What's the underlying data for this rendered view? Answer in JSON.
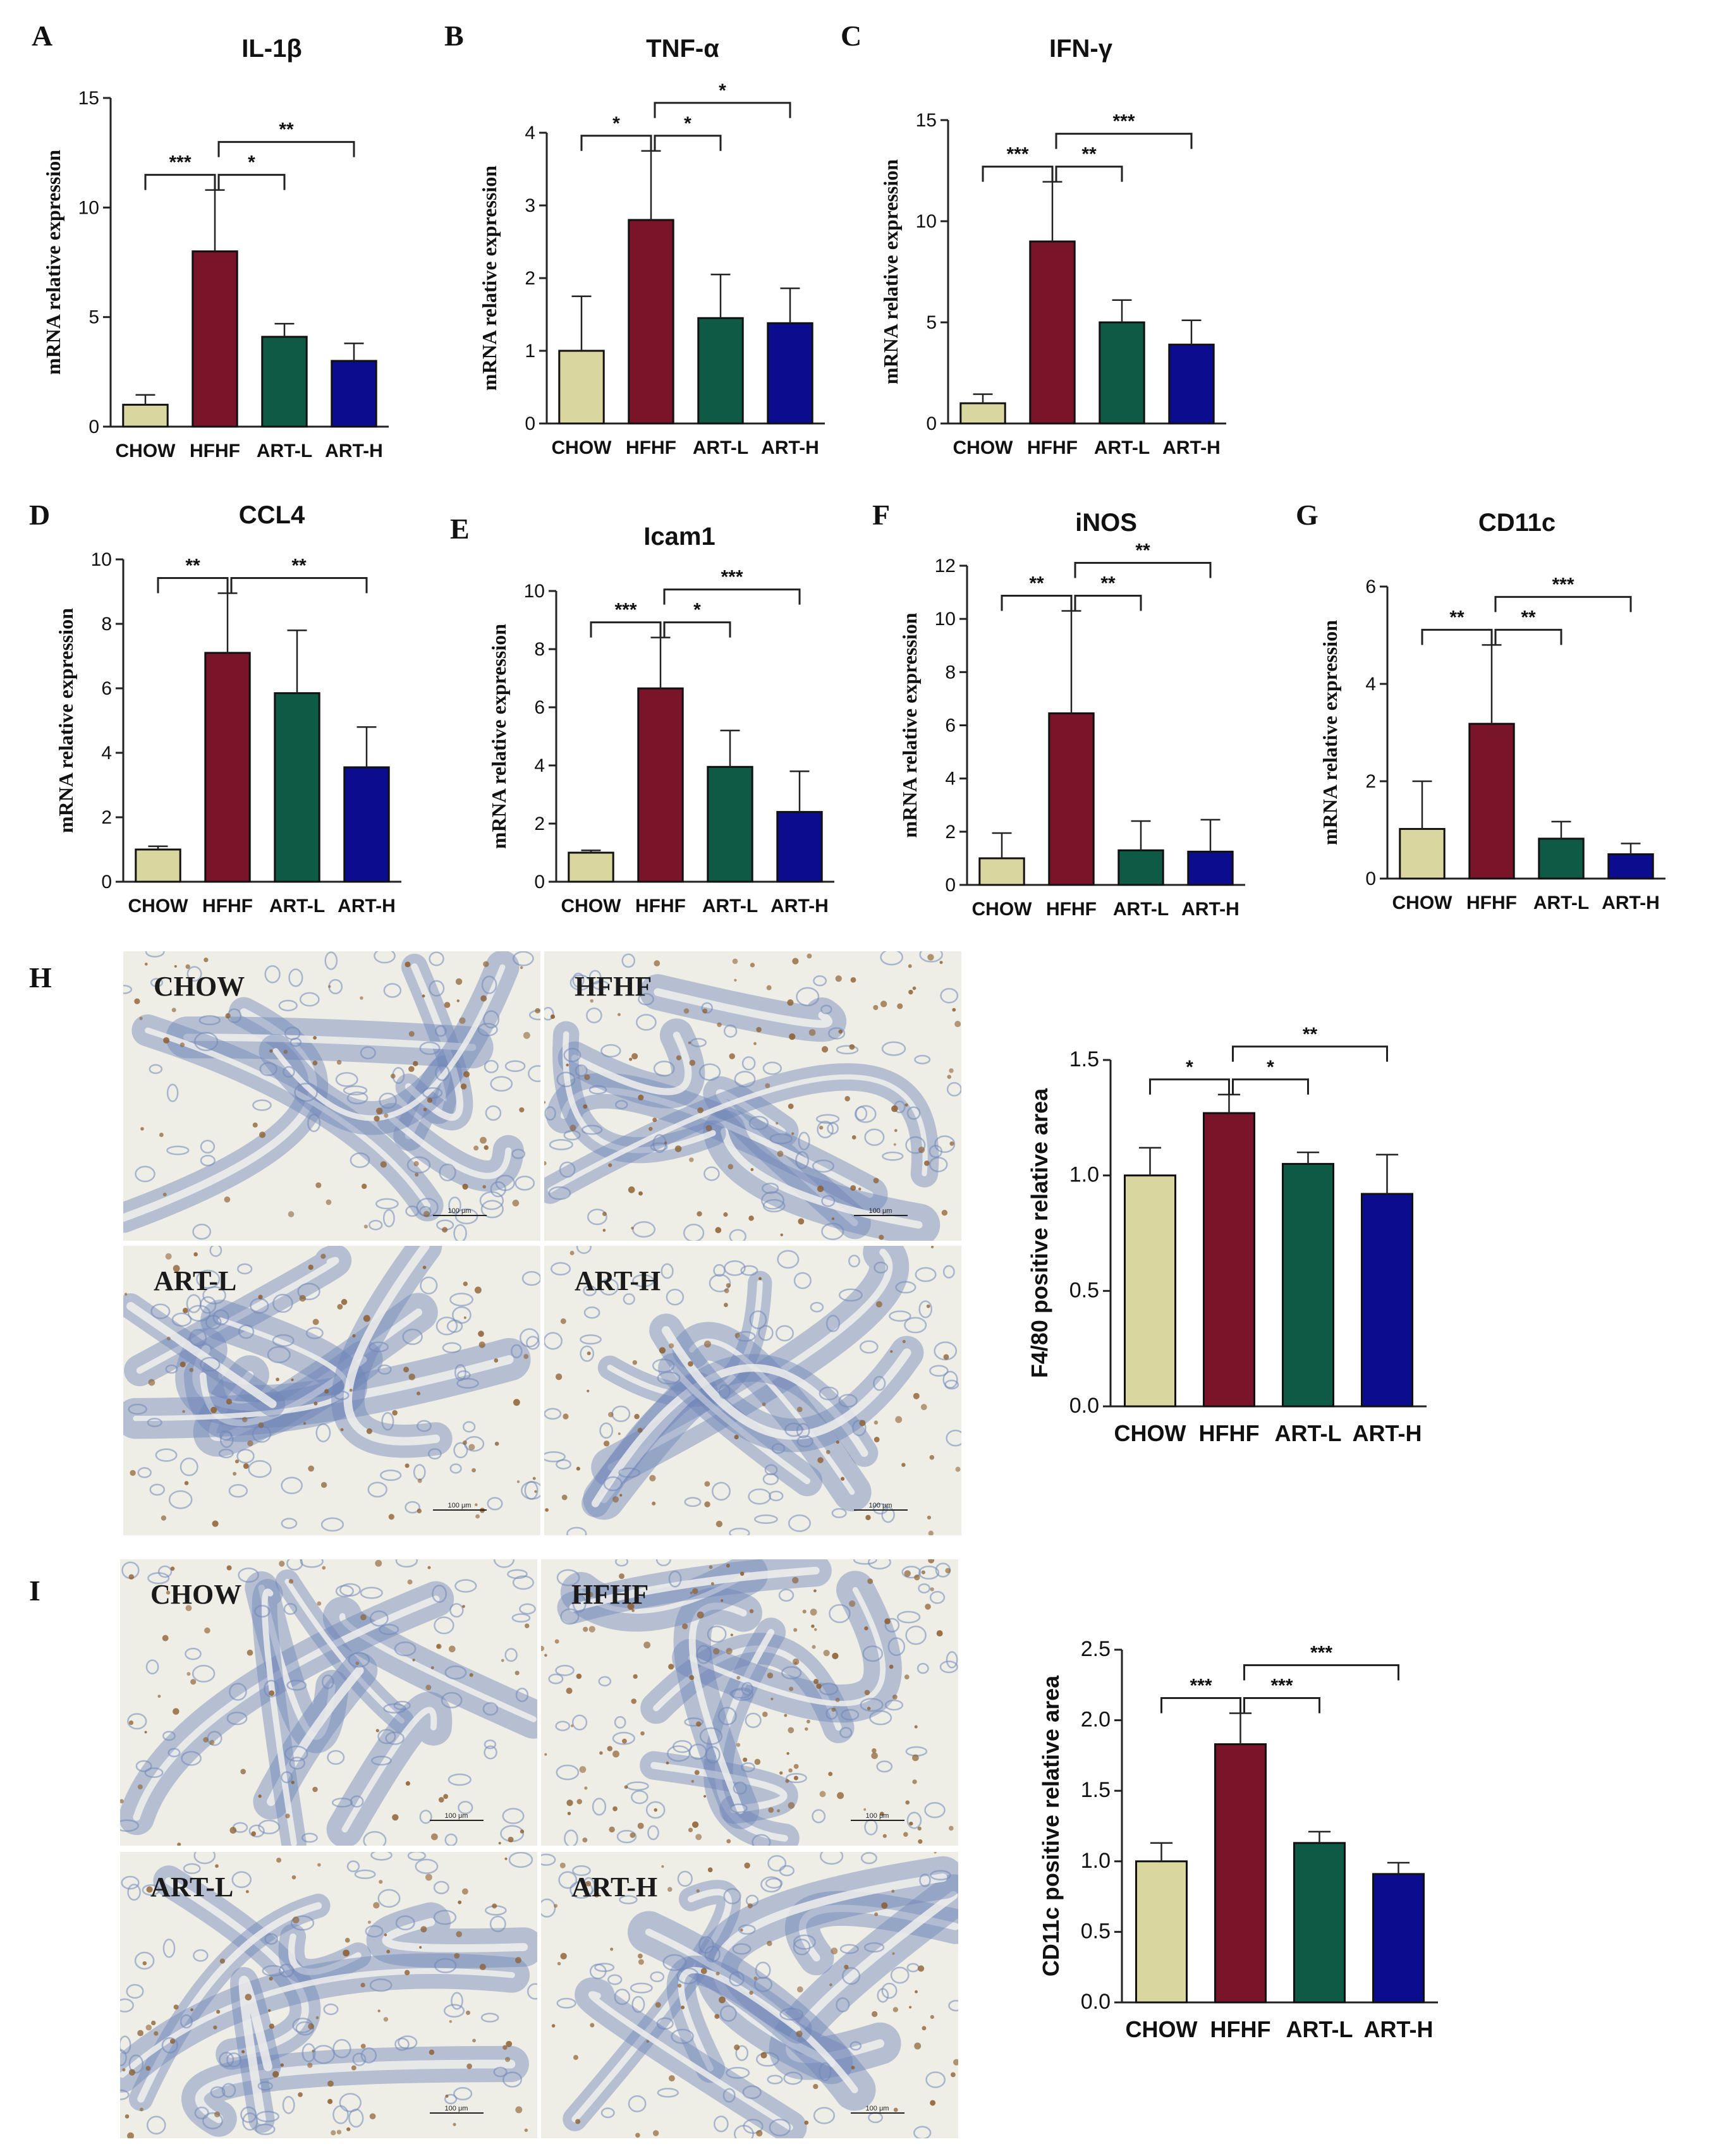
{
  "colors": {
    "CHOW": "#dad6a0",
    "HFHF": "#7a1428",
    "ART-L": "#0f5a44",
    "ART-H": "#0c0c8f",
    "tissue_base": "#eeeee6",
    "stain_blue": "#6f86b8",
    "stain_brown": "#8a5a2a"
  },
  "panels": {
    "A": "A",
    "B": "B",
    "C": "C",
    "D": "D",
    "E": "E",
    "F": "F",
    "G": "G",
    "H": "H",
    "I": "I"
  },
  "chart_data": [
    {
      "id": "A",
      "type": "bar",
      "title": "IL-1β",
      "ylabel": "mRNA relative expression",
      "xlabel": "",
      "categories": [
        "CHOW",
        "HFHF",
        "ART-L",
        "ART-H"
      ],
      "values": [
        1.0,
        8.0,
        4.1,
        3.0
      ],
      "errors": [
        0.45,
        2.8,
        0.6,
        0.8
      ],
      "ylim": [
        0,
        15
      ],
      "yticks": [
        "0",
        "5",
        "10",
        "15"
      ],
      "significance": [
        {
          "from": "CHOW",
          "to": "HFHF",
          "label": "***"
        },
        {
          "from": "HFHF",
          "to": "ART-L",
          "label": "*"
        },
        {
          "from": "HFHF",
          "to": "ART-H",
          "label": "**"
        }
      ]
    },
    {
      "id": "B",
      "type": "bar",
      "title": "TNF-α",
      "ylabel": "mRNA relative expression",
      "xlabel": "",
      "categories": [
        "CHOW",
        "HFHF",
        "ART-L",
        "ART-H"
      ],
      "values": [
        1.0,
        2.8,
        1.45,
        1.38
      ],
      "errors": [
        0.75,
        0.95,
        0.6,
        0.48
      ],
      "ylim": [
        0,
        4
      ],
      "yticks": [
        "0",
        "1",
        "2",
        "3",
        "4"
      ],
      "significance": [
        {
          "from": "CHOW",
          "to": "HFHF",
          "label": "*"
        },
        {
          "from": "HFHF",
          "to": "ART-L",
          "label": "*"
        },
        {
          "from": "HFHF",
          "to": "ART-H",
          "label": "*"
        }
      ]
    },
    {
      "id": "C",
      "type": "bar",
      "title": "IFN-γ",
      "ylabel": "mRNA relative expression",
      "xlabel": "",
      "categories": [
        "CHOW",
        "HFHF",
        "ART-L",
        "ART-H"
      ],
      "values": [
        1.0,
        9.0,
        5.0,
        3.9
      ],
      "errors": [
        0.45,
        2.95,
        1.1,
        1.2
      ],
      "ylim": [
        0,
        15
      ],
      "yticks": [
        "0",
        "5",
        "10",
        "15"
      ],
      "significance": [
        {
          "from": "CHOW",
          "to": "HFHF",
          "label": "***"
        },
        {
          "from": "HFHF",
          "to": "ART-L",
          "label": "**"
        },
        {
          "from": "HFHF",
          "to": "ART-H",
          "label": "***"
        }
      ]
    },
    {
      "id": "D",
      "type": "bar",
      "title": "CCL4",
      "ylabel": "mRNA relative expression",
      "xlabel": "",
      "categories": [
        "CHOW",
        "HFHF",
        "ART-L",
        "ART-H"
      ],
      "values": [
        1.0,
        7.1,
        5.85,
        3.55
      ],
      "errors": [
        0.1,
        1.85,
        1.95,
        1.25
      ],
      "ylim": [
        0,
        10
      ],
      "yticks": [
        "0",
        "2",
        "4",
        "6",
        "8",
        "10"
      ],
      "significance": [
        {
          "from": "CHOW",
          "to": "HFHF",
          "label": "**"
        },
        {
          "from": "HFHF",
          "to": "ART-H",
          "label": "**"
        }
      ]
    },
    {
      "id": "E",
      "type": "bar",
      "title": "Icam1",
      "ylabel": "mRNA relative expression",
      "xlabel": "",
      "categories": [
        "CHOW",
        "HFHF",
        "ART-L",
        "ART-H"
      ],
      "values": [
        1.0,
        6.65,
        3.95,
        2.4
      ],
      "errors": [
        0.08,
        1.75,
        1.25,
        1.4
      ],
      "ylim": [
        0,
        10
      ],
      "yticks": [
        "0",
        "2",
        "4",
        "6",
        "8",
        "10"
      ],
      "significance": [
        {
          "from": "CHOW",
          "to": "HFHF",
          "label": "***"
        },
        {
          "from": "HFHF",
          "to": "ART-L",
          "label": "*"
        },
        {
          "from": "HFHF",
          "to": "ART-H",
          "label": "***"
        }
      ]
    },
    {
      "id": "F",
      "type": "bar",
      "title": "iNOS",
      "ylabel": "mRNA relative expression",
      "xlabel": "",
      "categories": [
        "CHOW",
        "HFHF",
        "ART-L",
        "ART-H"
      ],
      "values": [
        1.0,
        6.45,
        1.3,
        1.25
      ],
      "errors": [
        0.95,
        3.85,
        1.1,
        1.2
      ],
      "ylim": [
        0,
        12
      ],
      "yticks": [
        "0",
        "2",
        "4",
        "6",
        "8",
        "10",
        "12"
      ],
      "significance": [
        {
          "from": "CHOW",
          "to": "HFHF",
          "label": "**"
        },
        {
          "from": "HFHF",
          "to": "ART-L",
          "label": "**"
        },
        {
          "from": "HFHF",
          "to": "ART-H",
          "label": "**"
        }
      ]
    },
    {
      "id": "G",
      "type": "bar",
      "title": "CD11c",
      "ylabel": "mRNA relative expression",
      "xlabel": "",
      "categories": [
        "CHOW",
        "HFHF",
        "ART-L",
        "ART-H"
      ],
      "values": [
        1.02,
        3.18,
        0.82,
        0.5
      ],
      "errors": [
        0.98,
        1.62,
        0.35,
        0.22
      ],
      "ylim": [
        0,
        6
      ],
      "yticks": [
        "0",
        "2",
        "4",
        "6"
      ],
      "significance": [
        {
          "from": "CHOW",
          "to": "HFHF",
          "label": "**"
        },
        {
          "from": "HFHF",
          "to": "ART-L",
          "label": "**"
        },
        {
          "from": "HFHF",
          "to": "ART-H",
          "label": "***"
        }
      ]
    },
    {
      "id": "H",
      "type": "bar",
      "title": "",
      "ylabel": "F4/80 positive relative area",
      "xlabel": "",
      "categories": [
        "CHOW",
        "HFHF",
        "ART-L",
        "ART-H"
      ],
      "values": [
        1.0,
        1.27,
        1.05,
        0.92
      ],
      "errors": [
        0.12,
        0.08,
        0.05,
        0.17
      ],
      "ylim": [
        0,
        1.5
      ],
      "yticks": [
        "0.0",
        "0.5",
        "1.0",
        "1.5"
      ],
      "significance": [
        {
          "from": "CHOW",
          "to": "HFHF",
          "label": "*"
        },
        {
          "from": "HFHF",
          "to": "ART-L",
          "label": "*"
        },
        {
          "from": "HFHF",
          "to": "ART-H",
          "label": "**"
        }
      ]
    },
    {
      "id": "I",
      "type": "bar",
      "title": "",
      "ylabel": "CD11c positive relative area",
      "xlabel": "",
      "categories": [
        "CHOW",
        "HFHF",
        "ART-L",
        "ART-H"
      ],
      "values": [
        1.0,
        1.83,
        1.13,
        0.91
      ],
      "errors": [
        0.13,
        0.22,
        0.08,
        0.08
      ],
      "ylim": [
        0,
        2.5
      ],
      "yticks": [
        "0.0",
        "0.5",
        "1.0",
        "1.5",
        "2.0",
        "2.5"
      ],
      "significance": [
        {
          "from": "CHOW",
          "to": "HFHF",
          "label": "***"
        },
        {
          "from": "HFHF",
          "to": "ART-L",
          "label": "***"
        },
        {
          "from": "HFHF",
          "to": "ART-H",
          "label": "***"
        }
      ]
    }
  ],
  "micrographs": {
    "H": [
      {
        "label": "CHOW",
        "scale": "100 μm",
        "brown": 0.35
      },
      {
        "label": "HFHF",
        "scale": "100 μm",
        "brown": 0.6
      },
      {
        "label": "ART-L",
        "scale": "100 μm",
        "brown": 0.4
      },
      {
        "label": "ART-H",
        "scale": "100 μm",
        "brown": 0.3
      }
    ],
    "I": [
      {
        "label": "CHOW",
        "scale": "100 μm",
        "brown": 0.3
      },
      {
        "label": "HFHF",
        "scale": "100 μm",
        "brown": 0.9
      },
      {
        "label": "ART-L",
        "scale": "100 μm",
        "brown": 0.5
      },
      {
        "label": "ART-H",
        "scale": "100 μm",
        "brown": 0.35
      }
    ]
  }
}
